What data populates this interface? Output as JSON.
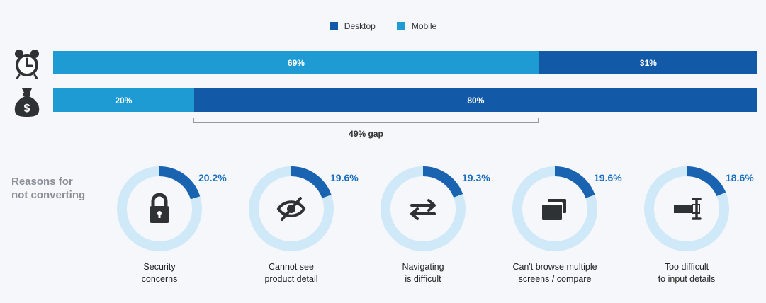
{
  "colors": {
    "desktop": "#1259a8",
    "mobile": "#1f9bd3",
    "ring_track": "#cfe9f8",
    "ring_value": "#1a63b0",
    "icon": "#2f3235"
  },
  "chart_data": [
    {
      "type": "bar",
      "orientation": "horizontal",
      "stacked": true,
      "legend": {
        "position": "top-center",
        "entries": [
          "Desktop",
          "Mobile"
        ]
      },
      "categories": [
        "alarm-clock-icon",
        "money-bag-icon"
      ],
      "series": [
        {
          "name": "Mobile",
          "values": [
            69,
            20
          ],
          "labels": [
            "69%",
            "20%"
          ]
        },
        {
          "name": "Desktop",
          "values": [
            31,
            80
          ],
          "labels": [
            "31%",
            "80%"
          ]
        }
      ],
      "xlim": [
        0,
        100
      ],
      "annotation": "49% gap"
    },
    {
      "type": "pie",
      "style": "donut",
      "title_lines": [
        "Reasons for",
        "not converting"
      ],
      "slices": [
        {
          "value": 20.2,
          "label": "20.2%",
          "caption": [
            "Security",
            "concerns"
          ],
          "icon": "lock-icon"
        },
        {
          "value": 19.6,
          "label": "19.6%",
          "caption": [
            "Cannot see",
            "product detail"
          ],
          "icon": "eye-slash-icon"
        },
        {
          "value": 19.3,
          "label": "19.3%",
          "caption": [
            "Navigating",
            "is difficult"
          ],
          "icon": "arrows-left-right-icon"
        },
        {
          "value": 19.6,
          "label": "19.6%",
          "caption": [
            "Can't browse multiple",
            "screens / compare"
          ],
          "icon": "multiple-screens-icon"
        },
        {
          "value": 18.6,
          "label": "18.6%",
          "caption": [
            "Too difficult",
            "to input details"
          ],
          "icon": "text-input-icon"
        }
      ]
    }
  ]
}
